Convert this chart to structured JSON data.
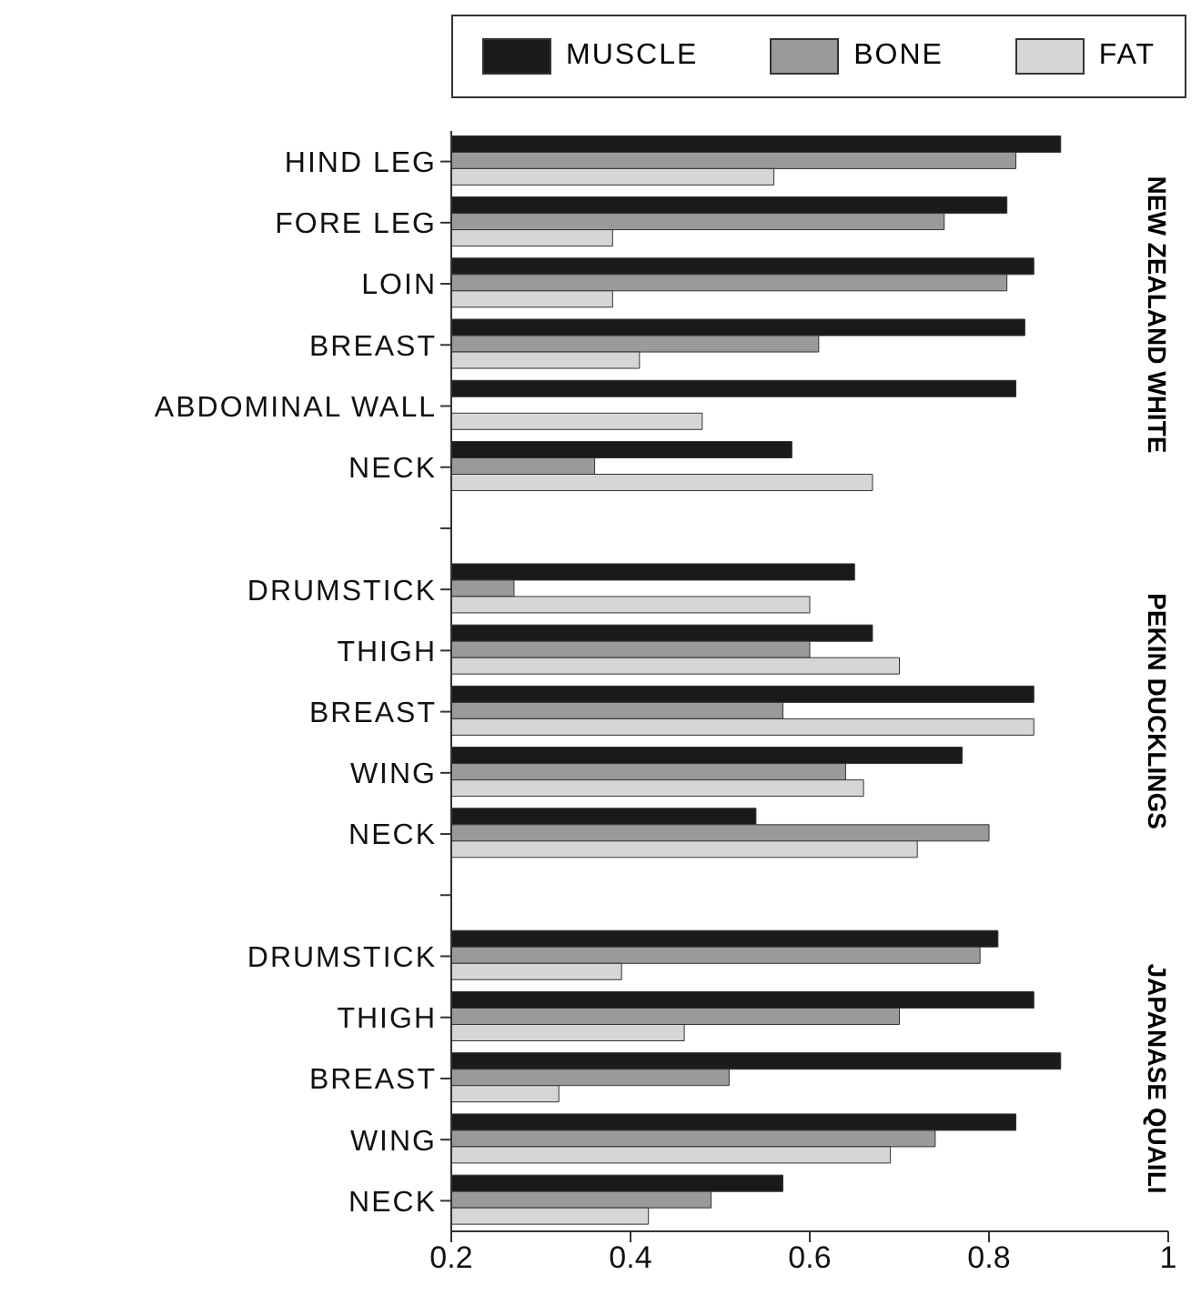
{
  "chart_data": {
    "type": "bar",
    "orientation": "horizontal",
    "categories": [
      "HIND LEG",
      "FORE LEG",
      "LOIN",
      "BREAST",
      "ABDOMINAL WALL",
      "NECK",
      null,
      "DRUMSTICK",
      "THIGH",
      "BREAST",
      "WING",
      "NECK",
      null,
      "DRUMSTICK",
      "THIGH",
      "BREAST",
      "WING",
      "NECK"
    ],
    "series": [
      {
        "name": "MUSCLE",
        "color": "#1a1a1a",
        "values": [
          0.88,
          0.82,
          0.85,
          0.84,
          0.83,
          0.58,
          null,
          0.65,
          0.67,
          0.85,
          0.77,
          0.54,
          null,
          0.81,
          0.85,
          0.88,
          0.83,
          0.57
        ]
      },
      {
        "name": "BONE",
        "color": "#9a9a9a",
        "values": [
          0.83,
          0.75,
          0.82,
          0.61,
          null,
          0.36,
          null,
          0.27,
          0.6,
          0.57,
          0.64,
          0.8,
          null,
          0.79,
          0.7,
          0.51,
          0.74,
          0.49
        ]
      },
      {
        "name": "FAT",
        "color": "#d6d6d6",
        "values": [
          0.56,
          0.38,
          0.38,
          0.41,
          0.48,
          0.67,
          null,
          0.6,
          0.7,
          0.85,
          0.66,
          0.72,
          null,
          0.39,
          0.46,
          0.32,
          0.69,
          0.42
        ]
      }
    ],
    "xlim": [
      0.2,
      1
    ],
    "xticks": [
      0.2,
      0.4,
      0.6,
      0.8,
      1
    ],
    "legend": "top",
    "annotations": [
      "NEW ZEALAND WHITE",
      "PEKIN DUCKLINGS",
      "JAPANASE QUAILI"
    ]
  }
}
